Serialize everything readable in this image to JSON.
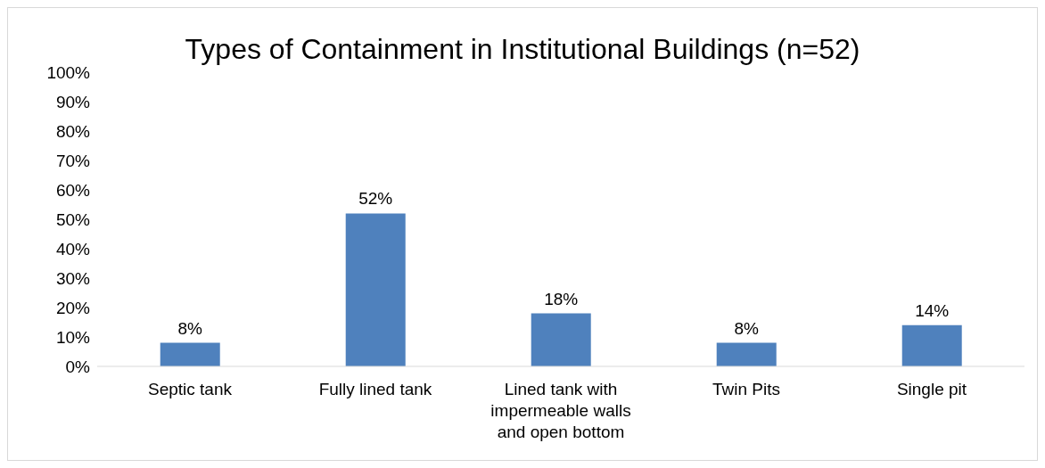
{
  "chart_data": {
    "type": "bar",
    "title": "Types of Containment in Institutional Buildings (n=52)",
    "categories": [
      "Septic tank",
      "Fully lined tank",
      "Lined tank with impermeable walls and open bottom",
      "Twin Pits",
      "Single pit"
    ],
    "values": [
      8,
      52,
      18,
      8,
      14
    ],
    "value_labels": [
      "8%",
      "52%",
      "18%",
      "8%",
      "14%"
    ],
    "color": "#4f81bd",
    "ylim": [
      0,
      100
    ],
    "yticks": [
      {
        "value": 0,
        "label": "0%"
      },
      {
        "value": 10,
        "label": "10%"
      },
      {
        "value": 20,
        "label": "20%"
      },
      {
        "value": 30,
        "label": "30%"
      },
      {
        "value": 40,
        "label": "40%"
      },
      {
        "value": 50,
        "label": "50%"
      },
      {
        "value": 60,
        "label": "60%"
      },
      {
        "value": 70,
        "label": "70%"
      },
      {
        "value": 80,
        "label": "80%"
      },
      {
        "value": 90,
        "label": "90%"
      },
      {
        "value": 100,
        "label": "100%"
      }
    ],
    "grid": false,
    "legend": false
  }
}
